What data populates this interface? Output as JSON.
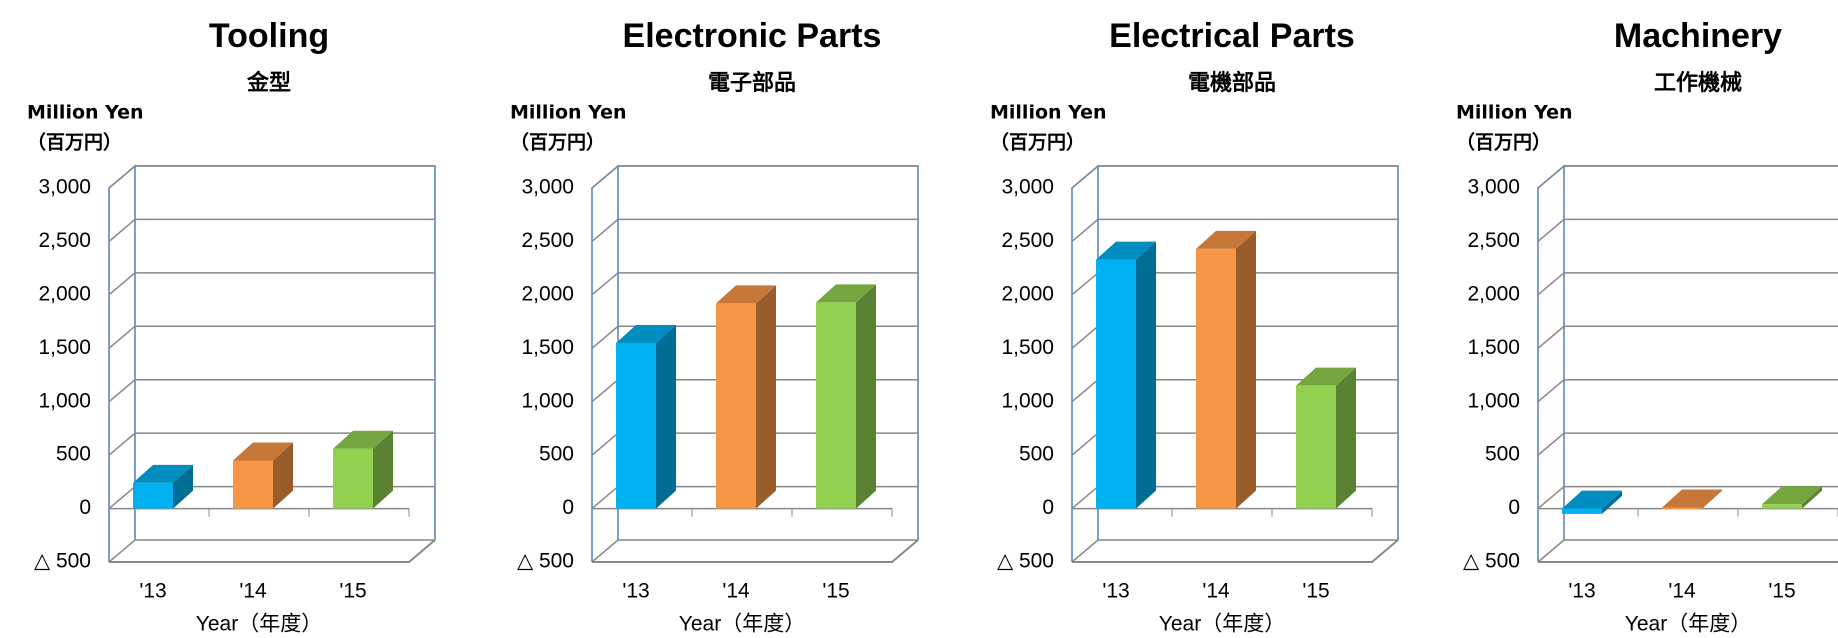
{
  "chart_data": [
    {
      "type": "bar3d",
      "title": "Tooling",
      "subtitle": "金型",
      "y_label": [
        "Million Yen",
        "（百万円）"
      ],
      "x_label": "Year（年度）",
      "categories": [
        "'13",
        "'14",
        "'15"
      ],
      "values": [
        240,
        450,
        560
      ],
      "colors": [
        "#00b0f0",
        "#f79646",
        "#92d050"
      ],
      "ylim": [
        -500,
        3000
      ],
      "yticks": [
        {
          "value": -500,
          "label": "△ 500"
        },
        0,
        500,
        {
          "value": 1000,
          "label": "1,000"
        },
        {
          "value": 1500,
          "label": "1,500"
        },
        {
          "value": 2000,
          "label": "2,000"
        },
        {
          "value": 2500,
          "label": "2,500"
        },
        {
          "value": 3000,
          "label": "3,000"
        }
      ],
      "grid": true
    },
    {
      "type": "bar3d",
      "title": "Electronic Parts",
      "subtitle": "電子部品",
      "y_label": [
        "Million Yen",
        "（百万円）"
      ],
      "x_label": "Year（年度）",
      "categories": [
        "'13",
        "'14",
        "'15"
      ],
      "values": [
        1550,
        1920,
        1930
      ],
      "colors": [
        "#00b0f0",
        "#f79646",
        "#92d050"
      ],
      "ylim": [
        -500,
        3000
      ],
      "yticks": [
        {
          "value": -500,
          "label": "△ 500"
        },
        0,
        500,
        {
          "value": 1000,
          "label": "1,000"
        },
        {
          "value": 1500,
          "label": "1,500"
        },
        {
          "value": 2000,
          "label": "2,000"
        },
        {
          "value": 2500,
          "label": "2,500"
        },
        {
          "value": 3000,
          "label": "3,000"
        }
      ],
      "grid": true
    },
    {
      "type": "bar3d",
      "title": "Electrical Parts",
      "subtitle": "電機部品",
      "y_label": [
        "Million Yen",
        "（百万円）"
      ],
      "x_label": "Year（年度）",
      "categories": [
        "'13",
        "'14",
        "'15"
      ],
      "values": [
        2330,
        2430,
        1150
      ],
      "colors": [
        "#00b0f0",
        "#f79646",
        "#92d050"
      ],
      "ylim": [
        -500,
        3000
      ],
      "yticks": [
        {
          "value": -500,
          "label": "△ 500"
        },
        0,
        500,
        {
          "value": 1000,
          "label": "1,000"
        },
        {
          "value": 1500,
          "label": "1,500"
        },
        {
          "value": 2000,
          "label": "2,000"
        },
        {
          "value": 2500,
          "label": "2,500"
        },
        {
          "value": 3000,
          "label": "3,000"
        }
      ],
      "grid": true
    },
    {
      "type": "bar3d",
      "title": "Machinery",
      "subtitle": "工作機械",
      "y_label": [
        "Million Yen",
        "（百万円）"
      ],
      "x_label": "Year（年度）",
      "categories": [
        "'13",
        "'14",
        "'15"
      ],
      "values": [
        -50,
        10,
        40
      ],
      "colors": [
        "#00b0f0",
        "#f79646",
        "#92d050"
      ],
      "ylim": [
        -500,
        3000
      ],
      "yticks": [
        {
          "value": -500,
          "label": "△ 500"
        },
        0,
        500,
        {
          "value": 1000,
          "label": "1,000"
        },
        {
          "value": 1500,
          "label": "1,500"
        },
        {
          "value": 2000,
          "label": "2,000"
        },
        {
          "value": 2500,
          "label": "2,500"
        },
        {
          "value": 3000,
          "label": "3,000"
        }
      ],
      "grid": true
    }
  ]
}
